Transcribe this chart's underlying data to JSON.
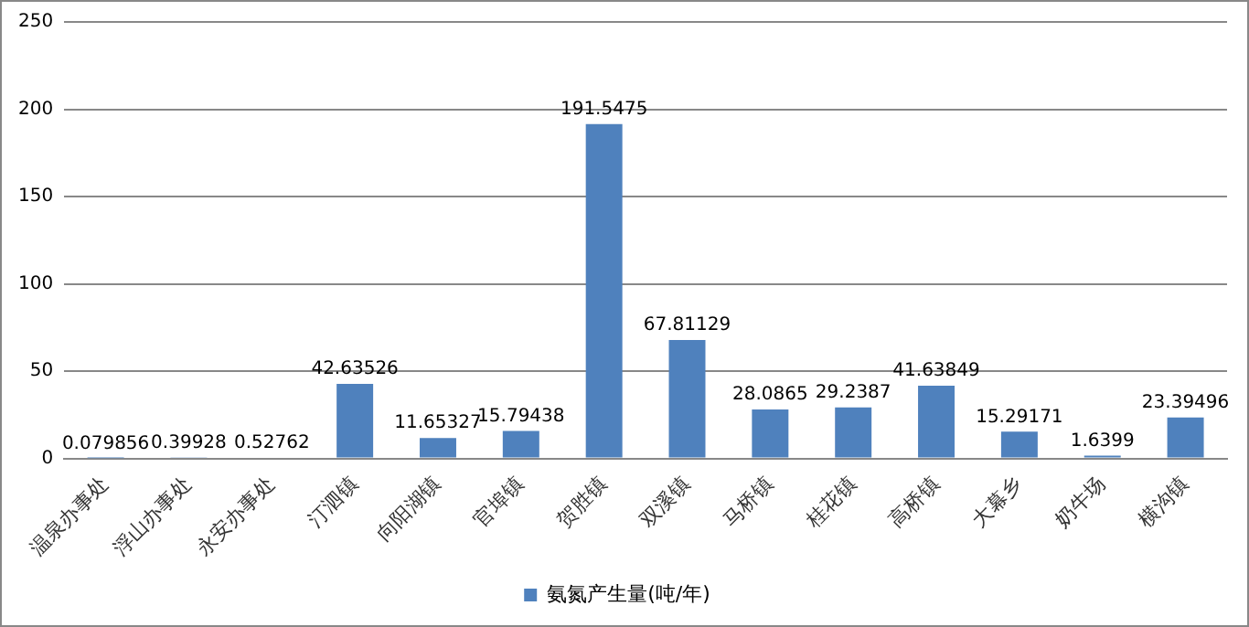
{
  "chart_data": {
    "type": "bar",
    "categories": [
      "温泉办事处",
      "浮山办事处",
      "永安办事处",
      "汀泗镇",
      "向阳湖镇",
      "官埠镇",
      "贺胜镇",
      "双溪镇",
      "马桥镇",
      "桂花镇",
      "高桥镇",
      "大幕乡",
      "奶牛场",
      "横沟镇"
    ],
    "series": [
      {
        "name": "氨氮产生量(吨/年)",
        "color": "#4f81bd",
        "values": [
          0.079856,
          0.39928,
          0.52762,
          42.63526,
          11.65327,
          15.79438,
          191.5475,
          67.81129,
          28.0865,
          29.2387,
          41.63849,
          15.29171,
          1.6399,
          23.39496
        ]
      }
    ],
    "ylim": [
      0,
      250
    ],
    "yticks": [
      0,
      50,
      100,
      150,
      200,
      250
    ],
    "grid": "y",
    "legend": "bottom",
    "data_labels": true
  }
}
